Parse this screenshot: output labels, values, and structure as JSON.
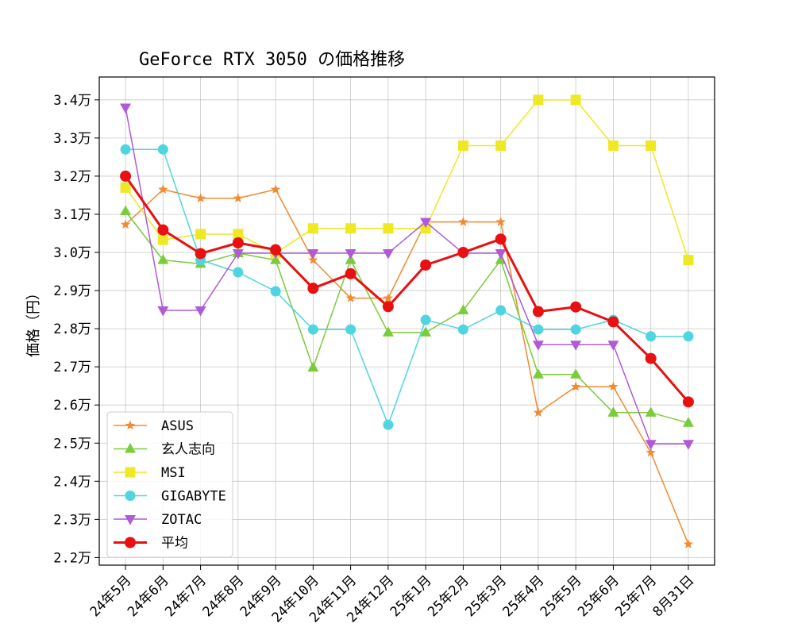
{
  "chart_data": {
    "type": "line",
    "title": "GeForce RTX 3050 の価格推移",
    "xlabel": "",
    "ylabel": "価格（円）",
    "categories": [
      "24年5月",
      "24年6月",
      "24年7月",
      "24年8月",
      "24年9月",
      "24年10月",
      "24年11月",
      "24年12月",
      "25年1月",
      "25年2月",
      "25年3月",
      "25年4月",
      "25年5月",
      "25年6月",
      "25年7月",
      "8月31日"
    ],
    "ylim": [
      21800,
      34600
    ],
    "yticks": [
      22000,
      23000,
      24000,
      25000,
      26000,
      27000,
      28000,
      29000,
      30000,
      31000,
      32000,
      33000,
      34000
    ],
    "ytick_labels": [
      "2.2万",
      "2.3万",
      "2.4万",
      "2.5万",
      "2.6万",
      "2.7万",
      "2.8万",
      "2.9万",
      "3.0万",
      "3.1万",
      "3.2万",
      "3.3万",
      "3.4万"
    ],
    "grid": true,
    "legend_position": "lower-left",
    "series": [
      {
        "name": "ASUS",
        "color": "#f28a30",
        "marker": "star",
        "linewidth": 1.5,
        "values": [
          30730,
          31650,
          31420,
          31420,
          31650,
          29800,
          28800,
          28800,
          30800,
          30800,
          30800,
          25800,
          26480,
          26480,
          24750,
          22350
        ]
      },
      {
        "name": "玄人志向",
        "color": "#7acc3a",
        "marker": "triangle-up",
        "linewidth": 1.5,
        "values": [
          31080,
          29800,
          29700,
          29980,
          29800,
          26980,
          29800,
          27900,
          27900,
          28480,
          29800,
          26800,
          26800,
          25800,
          25800,
          25530
        ]
      },
      {
        "name": "MSI",
        "color": "#eee825",
        "marker": "square",
        "linewidth": 1.5,
        "values": [
          31700,
          30330,
          30480,
          30480,
          29980,
          30630,
          30630,
          30630,
          30630,
          32800,
          32800,
          34000,
          34000,
          32800,
          32800,
          29800
        ]
      },
      {
        "name": "GIGABYTE",
        "color": "#4fd5e0",
        "marker": "circle",
        "linewidth": 1.5,
        "values": [
          32700,
          32700,
          29800,
          29480,
          28980,
          27980,
          27980,
          25480,
          28230,
          27980,
          28480,
          27980,
          27980,
          28230,
          27800,
          27800
        ]
      },
      {
        "name": "ZOTAC",
        "color": "#b05ad8",
        "marker": "triangle-down",
        "linewidth": 1.5,
        "values": [
          33800,
          28480,
          28480,
          29980,
          29980,
          29980,
          29980,
          29980,
          30800,
          29980,
          29980,
          27580,
          27580,
          27580,
          24980,
          24980
        ]
      },
      {
        "name": "平均",
        "color": "#e81010",
        "marker": "circle",
        "linewidth": 3,
        "values": [
          32000,
          30590,
          29970,
          30250,
          30070,
          29060,
          29440,
          28580,
          29670,
          30000,
          30350,
          28450,
          28570,
          28180,
          27220,
          26080
        ]
      }
    ]
  }
}
